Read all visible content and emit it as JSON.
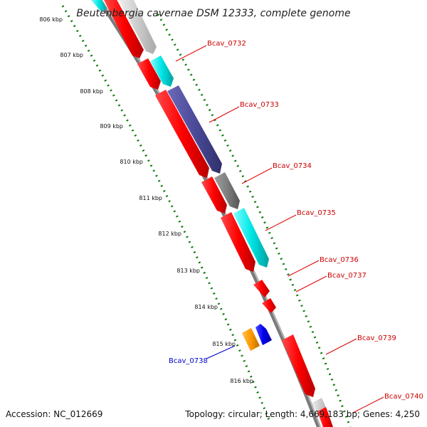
{
  "title": "Beutenbergia cavernae DSM 12333, complete genome",
  "footer": {
    "accession": "Accession: NC_012669",
    "topology": "Topology: circular; Length: 4,669,183 bp; Genes: 4,250"
  },
  "ticks": [
    "806 kbp",
    "807 kbp",
    "808 kbp",
    "809 kbp",
    "810 kbp",
    "811 kbp",
    "812 kbp",
    "813 kbp",
    "814 kbp",
    "815 kbp",
    "816 kbp"
  ],
  "gene_labels": [
    {
      "name": "Bcav_0732",
      "color": "#cc0000"
    },
    {
      "name": "Bcav_0733",
      "color": "#cc0000"
    },
    {
      "name": "Bcav_0734",
      "color": "#cc0000"
    },
    {
      "name": "Bcav_0735",
      "color": "#cc0000"
    },
    {
      "name": "Bcav_0736",
      "color": "#cc0000"
    },
    {
      "name": "Bcav_0737",
      "color": "#cc0000"
    },
    {
      "name": "Bcav_0739",
      "color": "#cc0000"
    },
    {
      "name": "Bcav_0740",
      "color": "#cc0000"
    },
    {
      "name": "Bcav_0738",
      "color": "#0000cc"
    }
  ],
  "colors": {
    "cds": "#ff0000",
    "rrna": "#00e5e5",
    "trna": "#4b4b9a",
    "pseudo": "#808080",
    "light": "#c8c8c8",
    "orange": "#ff9900",
    "blue": "#0000ee",
    "tick_dots": "#0a7a0a",
    "backbone": "#7a7a7a"
  }
}
